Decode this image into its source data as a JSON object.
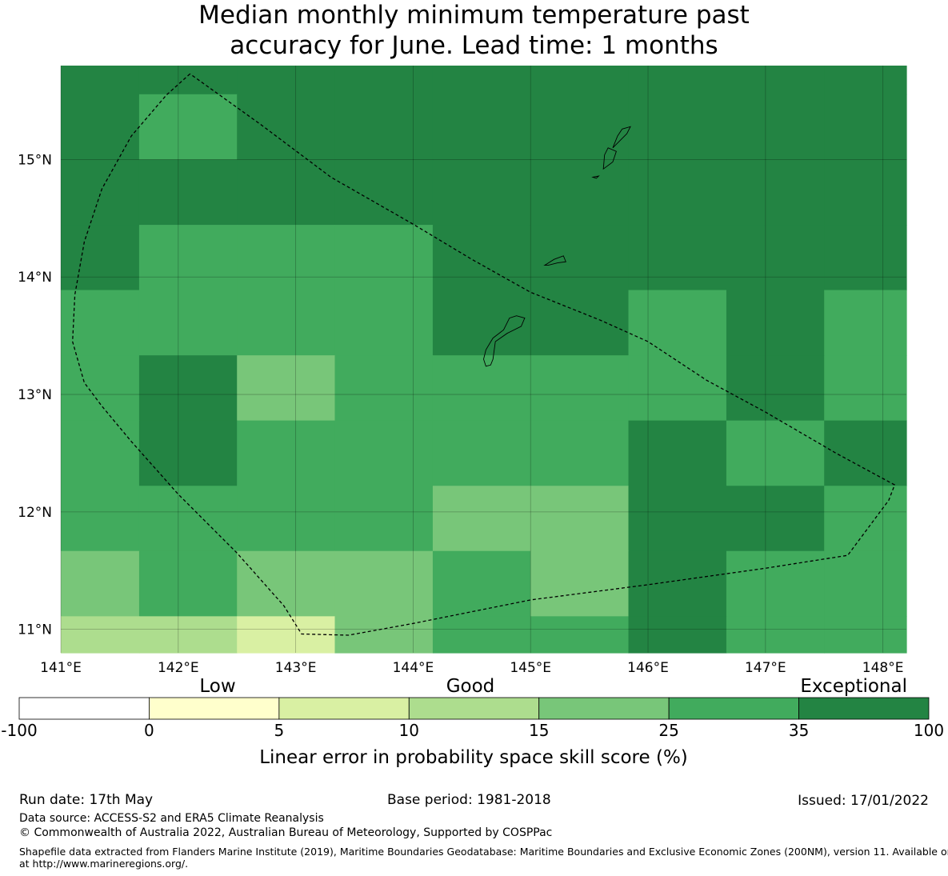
{
  "title_line1": "Median monthly minimum temperature past",
  "title_line2": "accuracy for June. Lead time: 1 months",
  "map": {
    "lon_range": [
      141.0,
      148.2
    ],
    "lat_range": [
      10.8,
      15.8
    ],
    "lon_ticks": [
      {
        "value": 141,
        "label": "141°E"
      },
      {
        "value": 142,
        "label": "142°E"
      },
      {
        "value": 143,
        "label": "143°E"
      },
      {
        "value": 144,
        "label": "144°E"
      },
      {
        "value": 145,
        "label": "145°E"
      },
      {
        "value": 146,
        "label": "146°E"
      },
      {
        "value": 147,
        "label": "147°E"
      },
      {
        "value": 148,
        "label": "148°E"
      }
    ],
    "lat_ticks": [
      {
        "value": 11,
        "label": "11°N"
      },
      {
        "value": 12,
        "label": "12°N"
      },
      {
        "value": 13,
        "label": "13°N"
      },
      {
        "value": 14,
        "label": "14°N"
      },
      {
        "value": 15,
        "label": "15°N"
      }
    ],
    "grid_lon_edges": [
      141.0,
      141.667,
      142.5,
      143.333,
      144.167,
      145.0,
      145.833,
      146.667,
      147.5,
      148.2
    ],
    "grid_lat_edges": [
      15.8,
      15.556,
      15.0,
      14.444,
      13.889,
      13.333,
      12.778,
      12.222,
      11.667,
      11.111,
      10.8
    ],
    "cell_classes": [
      [
        6,
        6,
        6,
        6,
        6,
        6,
        6,
        6,
        6
      ],
      [
        6,
        5,
        6,
        6,
        6,
        6,
        6,
        6,
        6
      ],
      [
        6,
        6,
        6,
        6,
        6,
        6,
        6,
        6,
        6
      ],
      [
        6,
        5,
        5,
        5,
        6,
        6,
        6,
        6,
        6
      ],
      [
        5,
        5,
        5,
        5,
        6,
        6,
        5,
        6,
        5
      ],
      [
        5,
        6,
        4,
        5,
        5,
        5,
        5,
        6,
        5
      ],
      [
        5,
        6,
        5,
        5,
        5,
        5,
        6,
        5,
        6
      ],
      [
        5,
        5,
        5,
        5,
        4,
        4,
        6,
        6,
        5
      ],
      [
        4,
        5,
        4,
        4,
        5,
        4,
        6,
        5,
        5
      ],
      [
        3,
        3,
        2,
        4,
        5,
        5,
        6,
        5,
        5
      ]
    ],
    "eez_boundary": [
      [
        142.1,
        15.73
      ],
      [
        141.9,
        15.55
      ],
      [
        141.6,
        15.2
      ],
      [
        141.35,
        14.75
      ],
      [
        141.2,
        14.3
      ],
      [
        141.12,
        13.85
      ],
      [
        141.1,
        13.45
      ],
      [
        141.2,
        13.1
      ],
      [
        141.35,
        12.9
      ],
      [
        141.6,
        12.6
      ],
      [
        142.0,
        12.15
      ],
      [
        142.5,
        11.65
      ],
      [
        142.9,
        11.2
      ],
      [
        143.05,
        10.96
      ],
      [
        143.45,
        10.95
      ],
      [
        144.0,
        11.05
      ],
      [
        145.0,
        11.25
      ],
      [
        146.0,
        11.38
      ],
      [
        147.0,
        11.52
      ],
      [
        147.7,
        11.63
      ],
      [
        148.05,
        12.1
      ],
      [
        148.1,
        12.23
      ],
      [
        147.6,
        12.5
      ],
      [
        147.0,
        12.85
      ],
      [
        146.5,
        13.12
      ],
      [
        146.0,
        13.45
      ],
      [
        145.6,
        13.63
      ],
      [
        145.0,
        13.87
      ],
      [
        144.5,
        14.15
      ],
      [
        144.0,
        14.45
      ],
      [
        143.3,
        14.85
      ],
      [
        142.7,
        15.3
      ],
      [
        142.1,
        15.73
      ]
    ],
    "islands": [
      [
        [
          144.62,
          13.24
        ],
        [
          144.66,
          13.25
        ],
        [
          144.68,
          13.3
        ],
        [
          144.7,
          13.45
        ],
        [
          144.8,
          13.52
        ],
        [
          144.92,
          13.58
        ],
        [
          144.95,
          13.65
        ],
        [
          144.88,
          13.67
        ],
        [
          144.82,
          13.65
        ],
        [
          144.77,
          13.55
        ],
        [
          144.68,
          13.48
        ],
        [
          144.65,
          13.43
        ],
        [
          144.62,
          13.38
        ],
        [
          144.6,
          13.3
        ],
        [
          144.62,
          13.24
        ]
      ],
      [
        [
          145.12,
          14.1
        ],
        [
          145.2,
          14.15
        ],
        [
          145.28,
          14.18
        ],
        [
          145.3,
          14.13
        ],
        [
          145.23,
          14.12
        ],
        [
          145.15,
          14.1
        ],
        [
          145.12,
          14.1
        ]
      ],
      [
        [
          145.62,
          14.92
        ],
        [
          145.7,
          14.98
        ],
        [
          145.73,
          15.07
        ],
        [
          145.66,
          15.1
        ],
        [
          145.63,
          15.04
        ],
        [
          145.62,
          14.92
        ]
      ],
      [
        [
          145.7,
          15.1
        ],
        [
          145.75,
          15.15
        ],
        [
          145.82,
          15.22
        ],
        [
          145.85,
          15.28
        ],
        [
          145.78,
          15.26
        ],
        [
          145.74,
          15.2
        ],
        [
          145.7,
          15.1
        ]
      ],
      [
        [
          145.53,
          14.85
        ],
        [
          145.58,
          14.86
        ],
        [
          145.56,
          14.84
        ],
        [
          145.53,
          14.85
        ]
      ]
    ]
  },
  "colorbar": {
    "categories": [
      "Low",
      "Good",
      "Exceptional"
    ],
    "boundaries": [
      "-100",
      "0",
      "5",
      "10",
      "15",
      "25",
      "35",
      "100"
    ],
    "colors": [
      "#ffffff",
      "#ffffcc",
      "#d9f0a3",
      "#addd8e",
      "#78c679",
      "#41ab5d",
      "#238443"
    ],
    "label": "Linear error in probability space skill score (%)"
  },
  "footer": {
    "run_date": "Run date: 17th May",
    "base_period": "Base period: 1981-2018",
    "issued": "Issued: 17/01/2022",
    "data_source": "Data source: ACCESS-S2 and ERA5 Climate Reanalysis",
    "copyright": "© Commonwealth of Australia 2022, Australian Bureau of Meteorology, Supported by COSPPac",
    "shapefile_line1": "Shapefile data extracted from Flanders Marine Institute (2019), Maritime Boundaries Geodatabase: Maritime Boundaries and Exclusive Economic Zones (200NM), version 11. Available online",
    "shapefile_line2": "at http://www.marineregions.org/."
  }
}
